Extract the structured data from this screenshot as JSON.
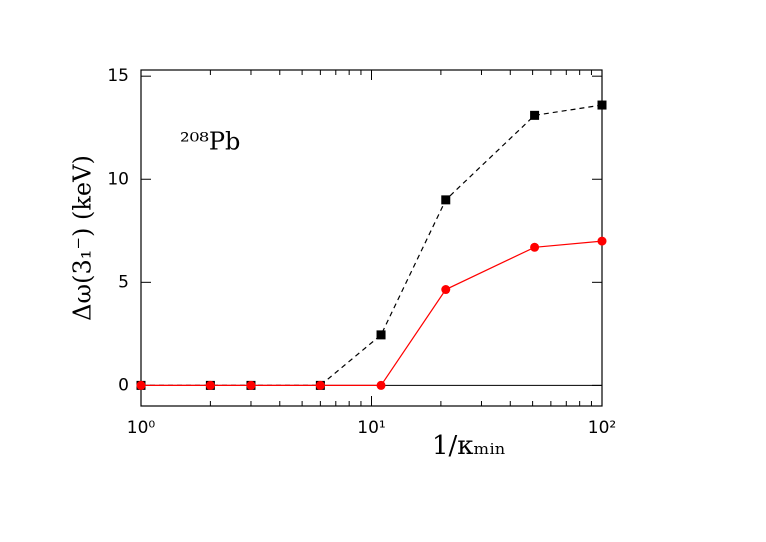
{
  "chart_data": {
    "type": "line",
    "xlabel": "1/κₘᵢₙ",
    "ylabel": "Δω(3₁⁻)  (keV)",
    "annotation": "²⁰⁸Pb",
    "x": [
      1,
      2,
      3,
      6,
      11,
      21,
      51,
      100
    ],
    "series": [
      {
        "name": "black",
        "color": "#000000",
        "linestyle": "dashed",
        "marker": "square",
        "values": [
          0,
          0,
          0,
          0,
          2.45,
          9.0,
          13.1,
          13.6
        ]
      },
      {
        "name": "red",
        "color": "#ff0000",
        "linestyle": "solid",
        "marker": "circle",
        "values": [
          0,
          0,
          0,
          0,
          0,
          4.65,
          6.7,
          7.0
        ]
      }
    ],
    "xscale": "log",
    "xlim": [
      1,
      100
    ],
    "xticks": [
      {
        "value": 1,
        "label": "10⁰"
      },
      {
        "value": 10,
        "label": "10¹"
      },
      {
        "value": 100,
        "label": "10²"
      }
    ],
    "xminorticks": [
      2,
      3,
      4,
      5,
      6,
      7,
      8,
      9,
      20,
      30,
      40,
      50,
      60,
      70,
      80,
      90
    ],
    "ylim": [
      -1,
      15.3
    ],
    "yticks": [
      0,
      5,
      10,
      15
    ]
  }
}
